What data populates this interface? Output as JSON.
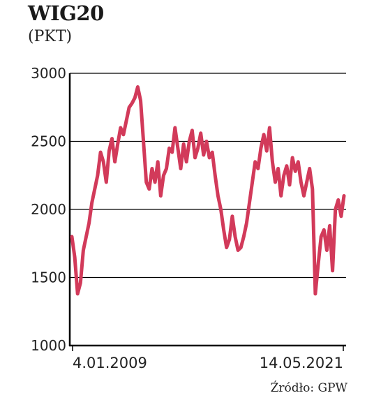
{
  "title": "WIG20",
  "unit": "(PKT)",
  "source": "Źródło: GPW",
  "chart_data": {
    "type": "line",
    "title": "WIG20",
    "ylabel": "(PKT)",
    "ylim": [
      1000,
      3000
    ],
    "yticks": [
      1000,
      1500,
      2000,
      2500,
      3000
    ],
    "ytick_labels": [
      "1000",
      "1500",
      "2000",
      "2500",
      "3000"
    ],
    "x_tick_labels": [
      "4.01.2009",
      "14.05.2021"
    ],
    "x_range": [
      "4.01.2009",
      "14.05.2021"
    ],
    "grid": "horizontal",
    "line_color": "#d23a5a",
    "series": [
      {
        "values": [
          1800,
          1650,
          1380,
          1460,
          1700,
          1800,
          1900,
          2050,
          2150,
          2250,
          2420,
          2350,
          2200,
          2430,
          2520,
          2350,
          2480,
          2600,
          2550,
          2650,
          2750,
          2780,
          2820,
          2900,
          2800,
          2500,
          2200,
          2150,
          2300,
          2200,
          2350,
          2100,
          2250,
          2300,
          2450,
          2420,
          2600,
          2450,
          2300,
          2480,
          2350,
          2500,
          2580,
          2380,
          2450,
          2560,
          2400,
          2500,
          2380,
          2420,
          2250,
          2100,
          2000,
          1850,
          1720,
          1780,
          1950,
          1800,
          1700,
          1720,
          1800,
          1900,
          2050,
          2200,
          2350,
          2300,
          2450,
          2550,
          2430,
          2600,
          2350,
          2200,
          2300,
          2100,
          2250,
          2320,
          2180,
          2380,
          2280,
          2350,
          2200,
          2100,
          2200,
          2300,
          2150,
          1380,
          1600,
          1800,
          1850,
          1700,
          1880,
          1550,
          2000,
          2070,
          1950,
          2100
        ]
      }
    ]
  }
}
